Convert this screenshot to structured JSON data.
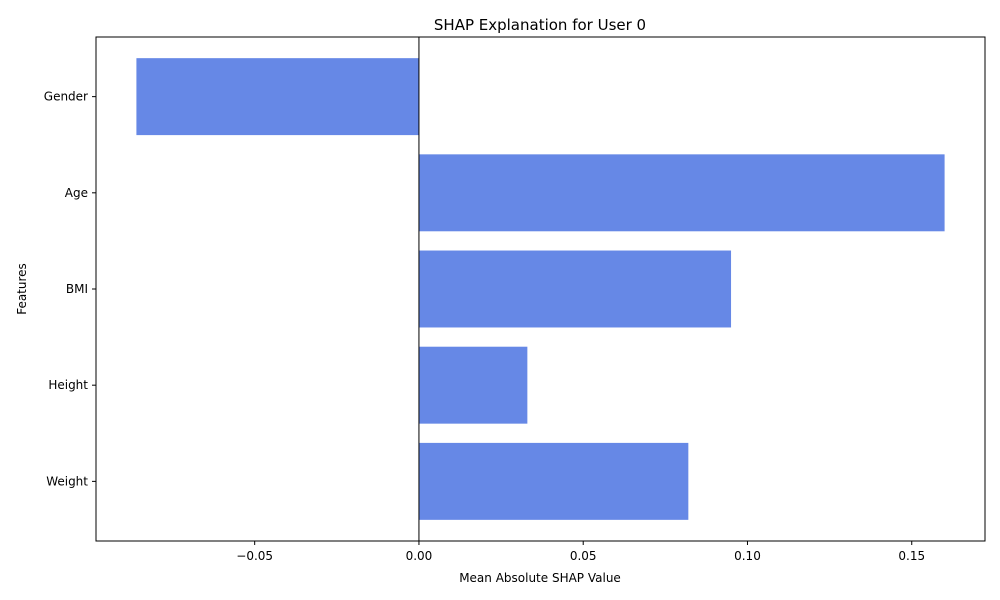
{
  "chart_data": {
    "type": "bar",
    "orientation": "horizontal",
    "title": "SHAP Explanation for User 0",
    "xlabel": "Mean Absolute SHAP Value",
    "ylabel": "Features",
    "categories": [
      "Gender",
      "Age",
      "BMI",
      "Height",
      "Weight"
    ],
    "values": [
      -0.086,
      0.16,
      0.095,
      0.033,
      0.082
    ],
    "xlim": [
      -0.0983,
      0.1723
    ],
    "xticks": [
      -0.05,
      0.0,
      0.05,
      0.1,
      0.15
    ],
    "xtick_labels": [
      "−0.05",
      "0.00",
      "0.05",
      "0.10",
      "0.15"
    ],
    "bar_color": "#6688e6",
    "zero_line": true,
    "grid": false,
    "legend": false
  }
}
